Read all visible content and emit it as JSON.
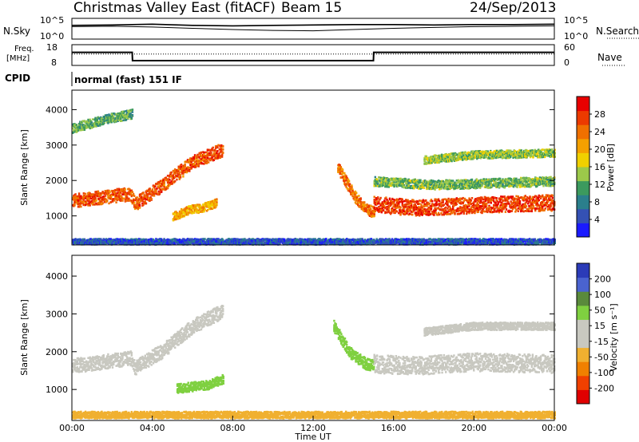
{
  "header": {
    "station": "Christmas Valley East (fitACF)",
    "beam": "Beam 15",
    "date": "24/Sep/2013"
  },
  "chart_data": [
    {
      "type": "line",
      "panel": "noise",
      "left_label": "N.Sky",
      "right_label": "N.Search",
      "left_ticks": [
        "10^5",
        "10^0"
      ],
      "right_ticks": [
        "10^5",
        "10^0"
      ],
      "x": [
        "00:00",
        "02:00",
        "04:00",
        "06:00",
        "08:00",
        "10:00",
        "12:00",
        "14:00",
        "16:00",
        "18:00",
        "20:00",
        "22:00",
        "24:00"
      ],
      "series": [
        {
          "values": [
            3.3,
            3.4,
            3.6,
            3.3,
            3.2,
            3.3,
            3.4,
            3.5,
            3.5,
            3.4,
            3.5,
            3.5,
            3.6
          ]
        },
        {
          "values": [
            3.0,
            3.1,
            2.9,
            2.6,
            2.3,
            2.1,
            2.0,
            2.3,
            2.6,
            2.8,
            3.0,
            3.1,
            3.2
          ]
        }
      ]
    },
    {
      "type": "line",
      "panel": "frequency",
      "left_label_1": "Freq.",
      "left_label_2": "[MHz]",
      "right_label": "Nave",
      "left_ticks": [
        "18",
        "8"
      ],
      "right_ticks": [
        "60",
        "0"
      ],
      "x": [
        "00:00",
        "03:00",
        "03:01",
        "15:00",
        "15:01",
        "24:00"
      ],
      "series": [
        {
          "values": [
            14.3,
            14.3,
            10.3,
            10.3,
            14.3,
            14.3
          ]
        }
      ],
      "nave_level": 33
    },
    {
      "type": "table",
      "panel": "cpid",
      "label": "CPID",
      "program": "normal (fast) 151 IF"
    },
    {
      "type": "heatmap",
      "panel": "power",
      "ylabel": "Slant Range [km]",
      "yticks": [
        "1000",
        "2000",
        "3000",
        "4000"
      ],
      "ylim": [
        180,
        4550
      ],
      "xlim": [
        0,
        24
      ],
      "colorbar_label": "Power [dB]",
      "colorbar_ticks": [
        "4",
        "8",
        "12",
        "16",
        "20",
        "24",
        "28"
      ],
      "colors": [
        "#1a1aff",
        "#3451b4",
        "#2b7f8c",
        "#3c9a5e",
        "#9cc94a",
        "#f0d000",
        "#f4a000",
        "#f07000",
        "#ec3a00",
        "#e80000"
      ],
      "bands": [
        {
          "t": [
            0.0,
            1.5,
            2.9,
            3.1,
            4.5,
            6.0,
            7.5
          ],
          "r": [
            1450,
            1550,
            1650,
            1350,
            1900,
            2550,
            2900
          ],
          "w": 380,
          "v": 26
        },
        {
          "t": [
            5.0,
            5.8,
            6.5,
            7.2
          ],
          "r": [
            1000,
            1200,
            1250,
            1400
          ],
          "w": 240,
          "v": 20
        },
        {
          "t": [
            13.2,
            14.0,
            14.6,
            15.0
          ],
          "r": [
            2400,
            1600,
            1200,
            1150
          ],
          "w": 320,
          "v": 24
        },
        {
          "t": [
            15.0,
            17.0,
            19.0,
            21.0,
            24.0
          ],
          "r": [
            1350,
            1250,
            1300,
            1350,
            1400
          ],
          "w": 450,
          "v": 27
        },
        {
          "t": [
            15.0,
            18.0,
            21.0,
            24.0
          ],
          "r": [
            2000,
            1900,
            1950,
            2000
          ],
          "w": 260,
          "v": 13
        },
        {
          "t": [
            17.5,
            20.0,
            24.0
          ],
          "r": [
            2600,
            2750,
            2800
          ],
          "w": 220,
          "v": 14
        },
        {
          "t": [
            0.0,
            2.0,
            3.0
          ],
          "r": [
            3500,
            3800,
            3900
          ],
          "w": 260,
          "v": 12
        },
        {
          "t": [
            0.0,
            3.0,
            24.0
          ],
          "r": [
            300,
            300,
            300
          ],
          "w": 160,
          "v": 5
        }
      ]
    },
    {
      "type": "heatmap",
      "panel": "velocity",
      "ylabel": "Slant Range [km]",
      "yticks": [
        "1000",
        "2000",
        "3000",
        "4000"
      ],
      "ylim": [
        180,
        4550
      ],
      "xlim": [
        0,
        24
      ],
      "xlabel": "Time UT",
      "xticks": [
        "00:00",
        "04:00",
        "08:00",
        "12:00",
        "16:00",
        "20:00",
        "00:00"
      ],
      "colorbar_label": "Velocity [m s⁻¹]",
      "colorbar_ticks": [
        "200",
        "100",
        "50",
        "15",
        "-15",
        "-50",
        "-100",
        "-200"
      ],
      "colors": [
        "#2b3bb8",
        "#4a63d0",
        "#5a8a3c",
        "#7fd040",
        "#c8c8c0",
        "#c8c8c0",
        "#f0b030",
        "#f08000",
        "#f04000",
        "#e00000"
      ],
      "bands": [
        {
          "t": [
            0.0,
            1.5,
            2.9,
            3.1,
            4.5,
            6.0,
            7.5
          ],
          "r": [
            1650,
            1750,
            1850,
            1600,
            2050,
            2700,
            3100
          ],
          "w": 380,
          "v": 0
        },
        {
          "t": [
            5.2,
            6.0,
            6.8,
            7.5
          ],
          "r": [
            1050,
            1100,
            1150,
            1300
          ],
          "w": 240,
          "v": 40
        },
        {
          "t": [
            13.0,
            13.8,
            14.6,
            15.0
          ],
          "r": [
            2700,
            2000,
            1700,
            1650
          ],
          "w": 300,
          "v": 35
        },
        {
          "t": [
            15.0,
            17.0,
            20.0,
            24.0
          ],
          "r": [
            1700,
            1650,
            1750,
            1700
          ],
          "w": 480,
          "v": 0
        },
        {
          "t": [
            17.5,
            20.0,
            24.0
          ],
          "r": [
            2550,
            2700,
            2700
          ],
          "w": 200,
          "v": 0
        },
        {
          "t": [
            0.0,
            8.0,
            16.0,
            24.0
          ],
          "r": [
            350,
            350,
            350,
            350
          ],
          "w": 180,
          "v": -60
        }
      ]
    }
  ]
}
